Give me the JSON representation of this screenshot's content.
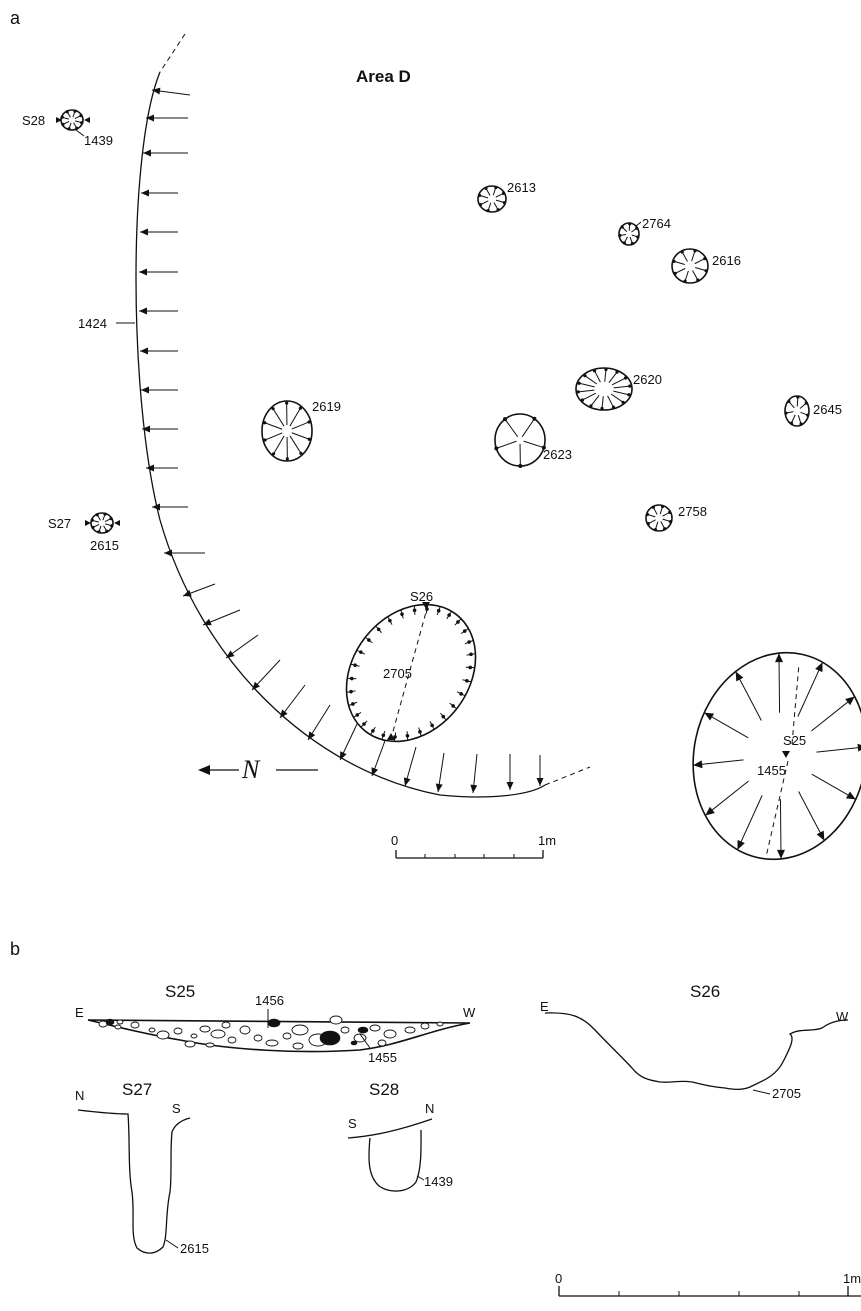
{
  "panels": {
    "a": "a",
    "b": "b"
  },
  "plan": {
    "title": "Area D",
    "ditch_label": "1424",
    "north_label": "N",
    "scale_zero": "0",
    "scale_end": "1m",
    "features": {
      "f1439": "1439",
      "f2613": "2613",
      "f2764": "2764",
      "f2616": "2616",
      "f2620": "2620",
      "f2645": "2645",
      "f2619": "2619",
      "f2623": "2623",
      "f2758": "2758",
      "f2615": "2615",
      "f2705": "2705",
      "f1455": "1455"
    },
    "section_marks": {
      "s28": "S28",
      "s27": "S27",
      "s26": "S26",
      "s25": "S25"
    }
  },
  "sections": {
    "s25": {
      "title": "S25",
      "left": "E",
      "right": "W",
      "labels": [
        "1456",
        "1455"
      ]
    },
    "s26": {
      "title": "S26",
      "left": "E",
      "right": "W",
      "label": "2705"
    },
    "s27": {
      "title": "S27",
      "left": "N",
      "right": "S",
      "label": "2615"
    },
    "s28": {
      "title": "S28",
      "left": "S",
      "right": "N",
      "label": "1439"
    },
    "scale_zero": "0",
    "scale_end": "1m"
  }
}
